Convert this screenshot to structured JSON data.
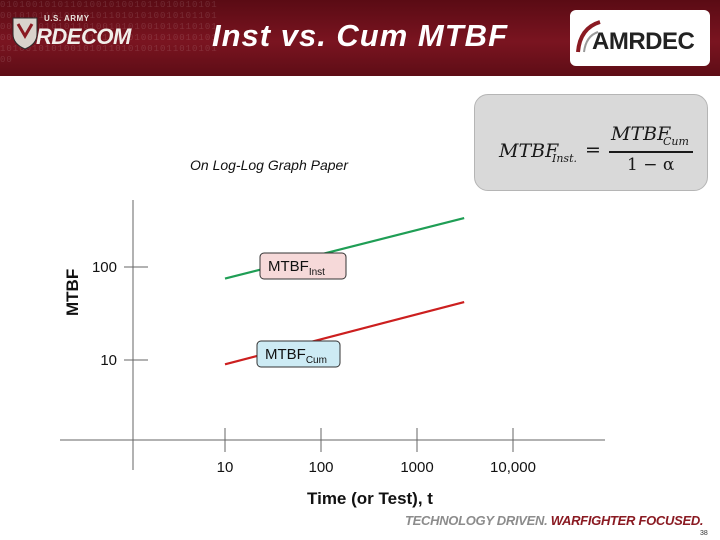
{
  "header": {
    "title": "Inst vs. Cum MTBF",
    "left_logo_top": "U.S. ARMY",
    "left_logo_main": "RDECOM",
    "right_logo_main": "AMRDEC",
    "binary_bg": "0101001010110100101001011010010101001010110101001011010101001010110100101001010110100101010010101101010010110101010010101101001010010101101001010100101011010100101101010100"
  },
  "formula": {
    "lhs_main": "MTBF",
    "lhs_sub": "Inst.",
    "equals": "=",
    "num_main": "MTBF",
    "num_sub": "Cum",
    "den": "1 − α"
  },
  "subtitle": "On Log-Log Graph Paper",
  "chart_data": {
    "type": "line",
    "x_scale": "log",
    "y_scale": "log",
    "xlabel": "Time (or Test), t",
    "ylabel": "MTBF",
    "x_ticks": [
      10,
      100,
      1000,
      10000
    ],
    "x_tick_labels": [
      "10",
      "100",
      "1000",
      "10,000"
    ],
    "y_ticks": [
      10,
      100
    ],
    "y_tick_labels": [
      "10",
      "100"
    ],
    "series": [
      {
        "name": "MTBFInst",
        "label_main": "MTBF",
        "label_sub": "Inst",
        "color": "#1f9e55",
        "label_bg": "#f6d9d9",
        "x": [
          10,
          3100
        ],
        "y": [
          75,
          336
        ]
      },
      {
        "name": "MTBFCum",
        "label_main": "MTBF",
        "label_sub": "Cum",
        "color": "#cc1f1f",
        "label_bg": "#cdebf4",
        "x": [
          10,
          3100
        ],
        "y": [
          9,
          42
        ]
      }
    ],
    "legend": "inline-labels",
    "grid": false
  },
  "footer": {
    "slogan_part1": "TECHNOLOGY DRIVEN.",
    "slogan_part2": "WARFIGHTER FOCUSED.",
    "page_number": "38"
  },
  "colors": {
    "header_maroon": "#7a1420",
    "accent_gold": "#c9a227"
  }
}
